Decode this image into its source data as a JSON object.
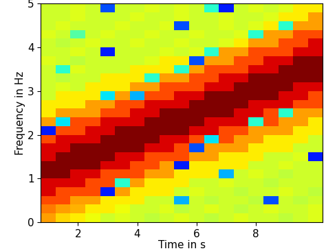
{
  "chart_data": {
    "type": "heatmap",
    "xlabel": "Time in s",
    "ylabel": "Frequency in Hz",
    "color": "jet",
    "color_range": [
      0,
      1
    ],
    "x": [
      1.0,
      1.5,
      2.0,
      2.5,
      3.0,
      3.5,
      4.0,
      4.5,
      5.0,
      5.5,
      6.0,
      6.5,
      7.0,
      7.5,
      8.0,
      8.5,
      9.0,
      9.5,
      10.0
    ],
    "y": [
      0.1,
      0.3,
      0.5,
      0.7,
      0.9,
      1.1,
      1.3,
      1.5,
      1.7,
      1.9,
      2.1,
      2.3,
      2.5,
      2.7,
      2.9,
      3.1,
      3.3,
      3.5,
      3.7,
      3.9,
      4.1,
      4.3,
      4.5,
      4.7,
      4.9
    ],
    "xlim": [
      0.75,
      10.25
    ],
    "xticks": [
      2,
      4,
      6,
      8
    ],
    "ylim": [
      0,
      5
    ],
    "yticks": [
      0,
      1,
      2,
      3,
      4,
      5
    ],
    "cells": [
      [
        0.74,
        0.68,
        0.66,
        0.64,
        0.6,
        0.62,
        0.6,
        0.58,
        0.6,
        0.62,
        0.6,
        0.58,
        0.6,
        0.62,
        0.6,
        0.6,
        0.58,
        0.6,
        0.62
      ],
      [
        0.78,
        0.74,
        0.72,
        0.66,
        0.66,
        0.64,
        0.6,
        0.6,
        0.62,
        0.58,
        0.6,
        0.62,
        0.6,
        0.58,
        0.6,
        0.62,
        0.6,
        0.6,
        0.62
      ],
      [
        0.83,
        0.83,
        0.74,
        0.74,
        0.66,
        0.66,
        0.66,
        0.6,
        0.6,
        0.3,
        0.6,
        0.58,
        0.6,
        0.6,
        0.58,
        0.2,
        0.6,
        0.58,
        0.6
      ],
      [
        0.92,
        0.83,
        0.83,
        0.83,
        0.15,
        0.74,
        0.66,
        0.66,
        0.66,
        0.6,
        0.62,
        0.6,
        0.6,
        0.58,
        0.6,
        0.6,
        0.62,
        0.6,
        0.58
      ],
      [
        0.92,
        0.92,
        0.92,
        0.83,
        0.83,
        0.4,
        0.74,
        0.66,
        0.66,
        0.66,
        0.6,
        0.6,
        0.62,
        0.6,
        0.6,
        0.58,
        0.6,
        0.6,
        0.6
      ],
      [
        1.0,
        1.0,
        0.92,
        0.92,
        0.83,
        0.83,
        0.83,
        0.74,
        0.74,
        0.66,
        0.66,
        0.66,
        0.3,
        0.6,
        0.62,
        0.6,
        0.58,
        0.6,
        0.6
      ],
      [
        1.0,
        1.0,
        1.0,
        1.0,
        0.92,
        0.92,
        0.83,
        0.83,
        0.74,
        0.15,
        0.66,
        0.66,
        0.66,
        0.66,
        0.6,
        0.6,
        0.62,
        0.6,
        0.6
      ],
      [
        0.92,
        1.0,
        1.0,
        1.0,
        1.0,
        0.92,
        0.92,
        0.83,
        0.83,
        0.83,
        0.74,
        0.74,
        0.66,
        0.66,
        0.66,
        0.6,
        0.6,
        0.62,
        0.15
      ],
      [
        0.92,
        0.92,
        1.0,
        1.0,
        1.0,
        1.0,
        1.0,
        0.92,
        0.92,
        0.83,
        0.2,
        0.74,
        0.74,
        0.74,
        0.66,
        0.66,
        0.66,
        0.6,
        0.6
      ],
      [
        0.83,
        0.92,
        0.92,
        0.92,
        1.0,
        1.0,
        1.0,
        1.0,
        0.92,
        0.92,
        0.83,
        0.35,
        0.83,
        0.74,
        0.74,
        0.66,
        0.66,
        0.66,
        0.6
      ],
      [
        0.15,
        0.83,
        0.83,
        0.92,
        0.92,
        1.0,
        1.0,
        1.0,
        1.0,
        1.0,
        0.92,
        0.92,
        0.83,
        0.83,
        0.74,
        0.74,
        0.74,
        0.66,
        0.66
      ],
      [
        0.74,
        0.35,
        0.83,
        0.83,
        0.92,
        0.92,
        0.92,
        1.0,
        1.0,
        1.0,
        1.0,
        0.92,
        0.92,
        0.92,
        0.4,
        0.83,
        0.74,
        0.74,
        0.66
      ],
      [
        0.66,
        0.74,
        0.74,
        0.74,
        0.83,
        0.83,
        0.92,
        0.92,
        1.0,
        1.0,
        1.0,
        1.0,
        1.0,
        0.92,
        0.92,
        0.83,
        0.4,
        0.74,
        0.74
      ],
      [
        0.66,
        0.66,
        0.66,
        0.74,
        0.74,
        0.83,
        0.83,
        0.92,
        0.92,
        0.92,
        1.0,
        1.0,
        1.0,
        1.0,
        0.92,
        0.92,
        0.92,
        0.83,
        0.83
      ],
      [
        0.6,
        0.66,
        0.66,
        0.66,
        0.35,
        0.74,
        0.3,
        0.83,
        0.83,
        0.92,
        0.92,
        1.0,
        1.0,
        1.0,
        1.0,
        1.0,
        0.92,
        0.92,
        0.83
      ],
      [
        0.6,
        0.62,
        0.6,
        0.66,
        0.66,
        0.66,
        0.74,
        0.74,
        0.83,
        0.83,
        0.83,
        0.92,
        0.92,
        1.0,
        1.0,
        1.0,
        1.0,
        0.92,
        0.92
      ],
      [
        0.6,
        0.58,
        0.6,
        0.6,
        0.66,
        0.66,
        0.66,
        0.4,
        0.74,
        0.74,
        0.83,
        0.83,
        0.92,
        0.92,
        1.0,
        1.0,
        1.0,
        1.0,
        1.0
      ],
      [
        0.6,
        0.4,
        0.62,
        0.6,
        0.6,
        0.6,
        0.66,
        0.66,
        0.66,
        0.4,
        0.74,
        0.83,
        0.83,
        0.83,
        0.92,
        0.92,
        1.0,
        1.0,
        1.0
      ],
      [
        0.62,
        0.6,
        0.58,
        0.6,
        0.6,
        0.6,
        0.6,
        0.62,
        0.66,
        0.66,
        0.2,
        0.74,
        0.74,
        0.83,
        0.83,
        0.92,
        0.92,
        1.0,
        1.0
      ],
      [
        0.6,
        0.6,
        0.62,
        0.6,
        0.15,
        0.6,
        0.6,
        0.6,
        0.62,
        0.6,
        0.62,
        0.4,
        0.74,
        0.74,
        0.83,
        0.83,
        0.83,
        0.92,
        0.92
      ],
      [
        0.6,
        0.58,
        0.6,
        0.62,
        0.6,
        0.6,
        0.62,
        0.6,
        0.6,
        0.62,
        0.6,
        0.6,
        0.62,
        0.66,
        0.74,
        0.74,
        0.83,
        0.83,
        0.92
      ],
      [
        0.62,
        0.6,
        0.45,
        0.6,
        0.62,
        0.6,
        0.6,
        0.62,
        0.6,
        0.6,
        0.62,
        0.6,
        0.6,
        0.62,
        0.4,
        0.74,
        0.74,
        0.83,
        0.83
      ],
      [
        0.6,
        0.62,
        0.6,
        0.6,
        0.6,
        0.62,
        0.6,
        0.6,
        0.62,
        0.2,
        0.6,
        0.6,
        0.62,
        0.6,
        0.62,
        0.66,
        0.4,
        0.74,
        0.74
      ],
      [
        0.6,
        0.6,
        0.62,
        0.6,
        0.6,
        0.6,
        0.62,
        0.6,
        0.6,
        0.62,
        0.6,
        0.6,
        0.62,
        0.6,
        0.6,
        0.62,
        0.66,
        0.66,
        0.74
      ],
      [
        0.6,
        0.6,
        0.62,
        0.6,
        0.2,
        0.6,
        0.6,
        0.62,
        0.6,
        0.62,
        0.6,
        0.4,
        0.15,
        0.6,
        0.62,
        0.6,
        0.62,
        0.66,
        0.66
      ]
    ]
  }
}
